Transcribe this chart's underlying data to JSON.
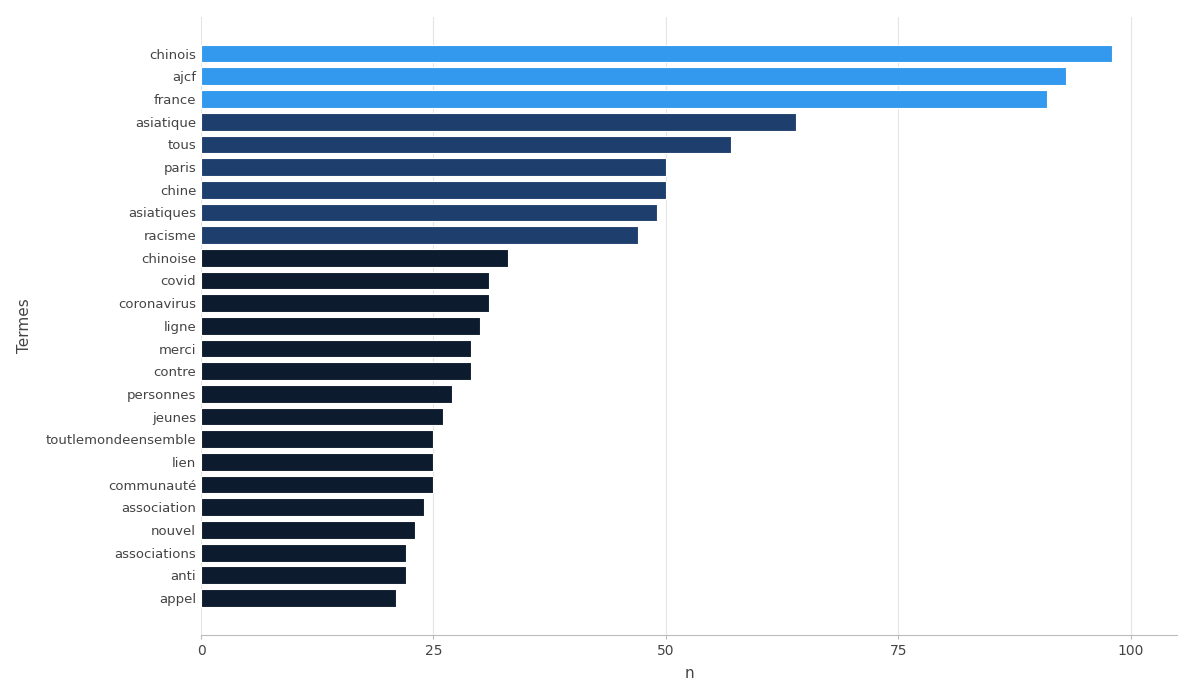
{
  "categories": [
    "chinois",
    "ajcf",
    "france",
    "asiatique",
    "tous",
    "paris",
    "chine",
    "asiatiques",
    "racisme",
    "chinoise",
    "covid",
    "coronavirus",
    "ligne",
    "merci",
    "contre",
    "personnes",
    "jeunes",
    "toutlemondeensemble",
    "lien",
    "communauté",
    "association",
    "nouvel",
    "associations",
    "anti",
    "appel"
  ],
  "values": [
    98,
    93,
    91,
    64,
    57,
    50,
    50,
    49,
    47,
    33,
    31,
    31,
    30,
    29,
    29,
    27,
    26,
    25,
    25,
    25,
    24,
    23,
    22,
    22,
    21
  ],
  "colors": [
    "#3399ee",
    "#3399ee",
    "#3399ee",
    "#1e3f6e",
    "#1e3f6e",
    "#1e3f6e",
    "#1e3f6e",
    "#1e3f6e",
    "#1e3f6e",
    "#0d1b2e",
    "#0d1b2e",
    "#0d1b2e",
    "#0d1b2e",
    "#0d1b2e",
    "#0d1b2e",
    "#0d1b2e",
    "#0d1b2e",
    "#0d1b2e",
    "#0d1b2e",
    "#0d1b2e",
    "#0d1b2e",
    "#0d1b2e",
    "#0d1b2e",
    "#0d1b2e",
    "#0d1b2e"
  ],
  "xlabel": "n",
  "ylabel": "Termes",
  "xlim": [
    0,
    105
  ],
  "xticks": [
    0,
    25,
    50,
    75,
    100
  ],
  "background_color": "#ffffff",
  "bar_height": 0.78,
  "edgecolor": "white",
  "linewidth": 0.8
}
